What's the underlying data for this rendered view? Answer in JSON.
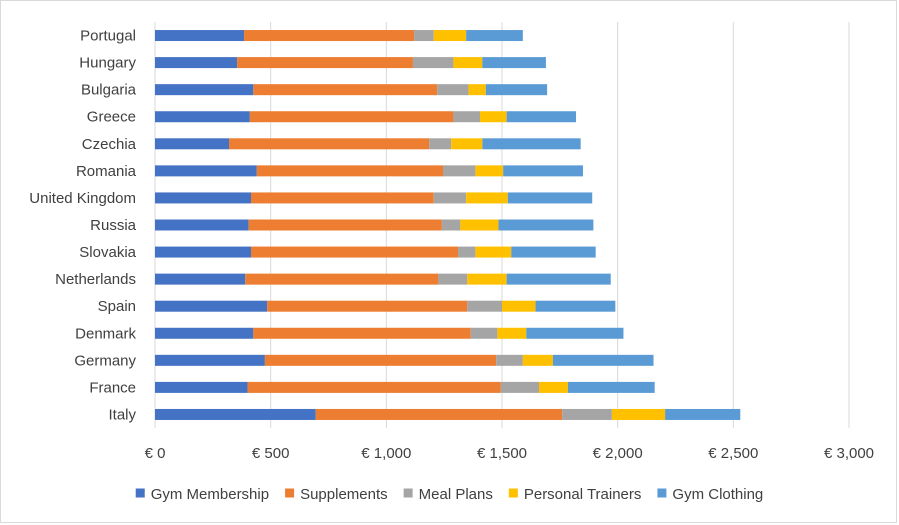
{
  "chart_data": {
    "type": "bar",
    "orientation": "horizontal",
    "stacked": true,
    "categories": [
      "Portugal",
      "Hungary",
      "Bulgaria",
      "Greece",
      "Czechia",
      "Romania",
      "United Kingdom",
      "Russia",
      "Slovakia",
      "Netherlands",
      "Spain",
      "Denmark",
      "Germany",
      "France",
      "Italy"
    ],
    "series": [
      {
        "name": "Gym Membership",
        "color": "#4472C4",
        "values": [
          385,
          355,
          425,
          410,
          320,
          440,
          415,
          405,
          415,
          390,
          485,
          425,
          475,
          400,
          695
        ]
      },
      {
        "name": "Supplements",
        "color": "#ED7D31",
        "values": [
          735,
          760,
          795,
          880,
          865,
          805,
          790,
          835,
          895,
          835,
          865,
          940,
          1000,
          1095,
          1065
        ]
      },
      {
        "name": "Meal Plans",
        "color": "#A5A5A5",
        "values": [
          85,
          175,
          135,
          115,
          95,
          140,
          140,
          80,
          75,
          125,
          150,
          115,
          115,
          165,
          215
        ]
      },
      {
        "name": "Personal Trainers",
        "color": "#FFC000",
        "values": [
          140,
          125,
          75,
          115,
          135,
          120,
          180,
          165,
          155,
          170,
          145,
          125,
          130,
          125,
          230
        ]
      },
      {
        "name": "Gym Clothing",
        "color": "#5B9BD5",
        "values": [
          245,
          275,
          265,
          300,
          425,
          345,
          365,
          410,
          365,
          450,
          345,
          420,
          435,
          375,
          325
        ]
      }
    ],
    "x_ticks": [
      "€ 0",
      "€ 500",
      "€ 1,000",
      "€ 1,500",
      "€ 2,000",
      "€ 2,500",
      "€ 3,000"
    ],
    "xlim": [
      0,
      3000
    ],
    "x_tick_step": 500,
    "grid": "vertical",
    "legend_position": "bottom"
  }
}
